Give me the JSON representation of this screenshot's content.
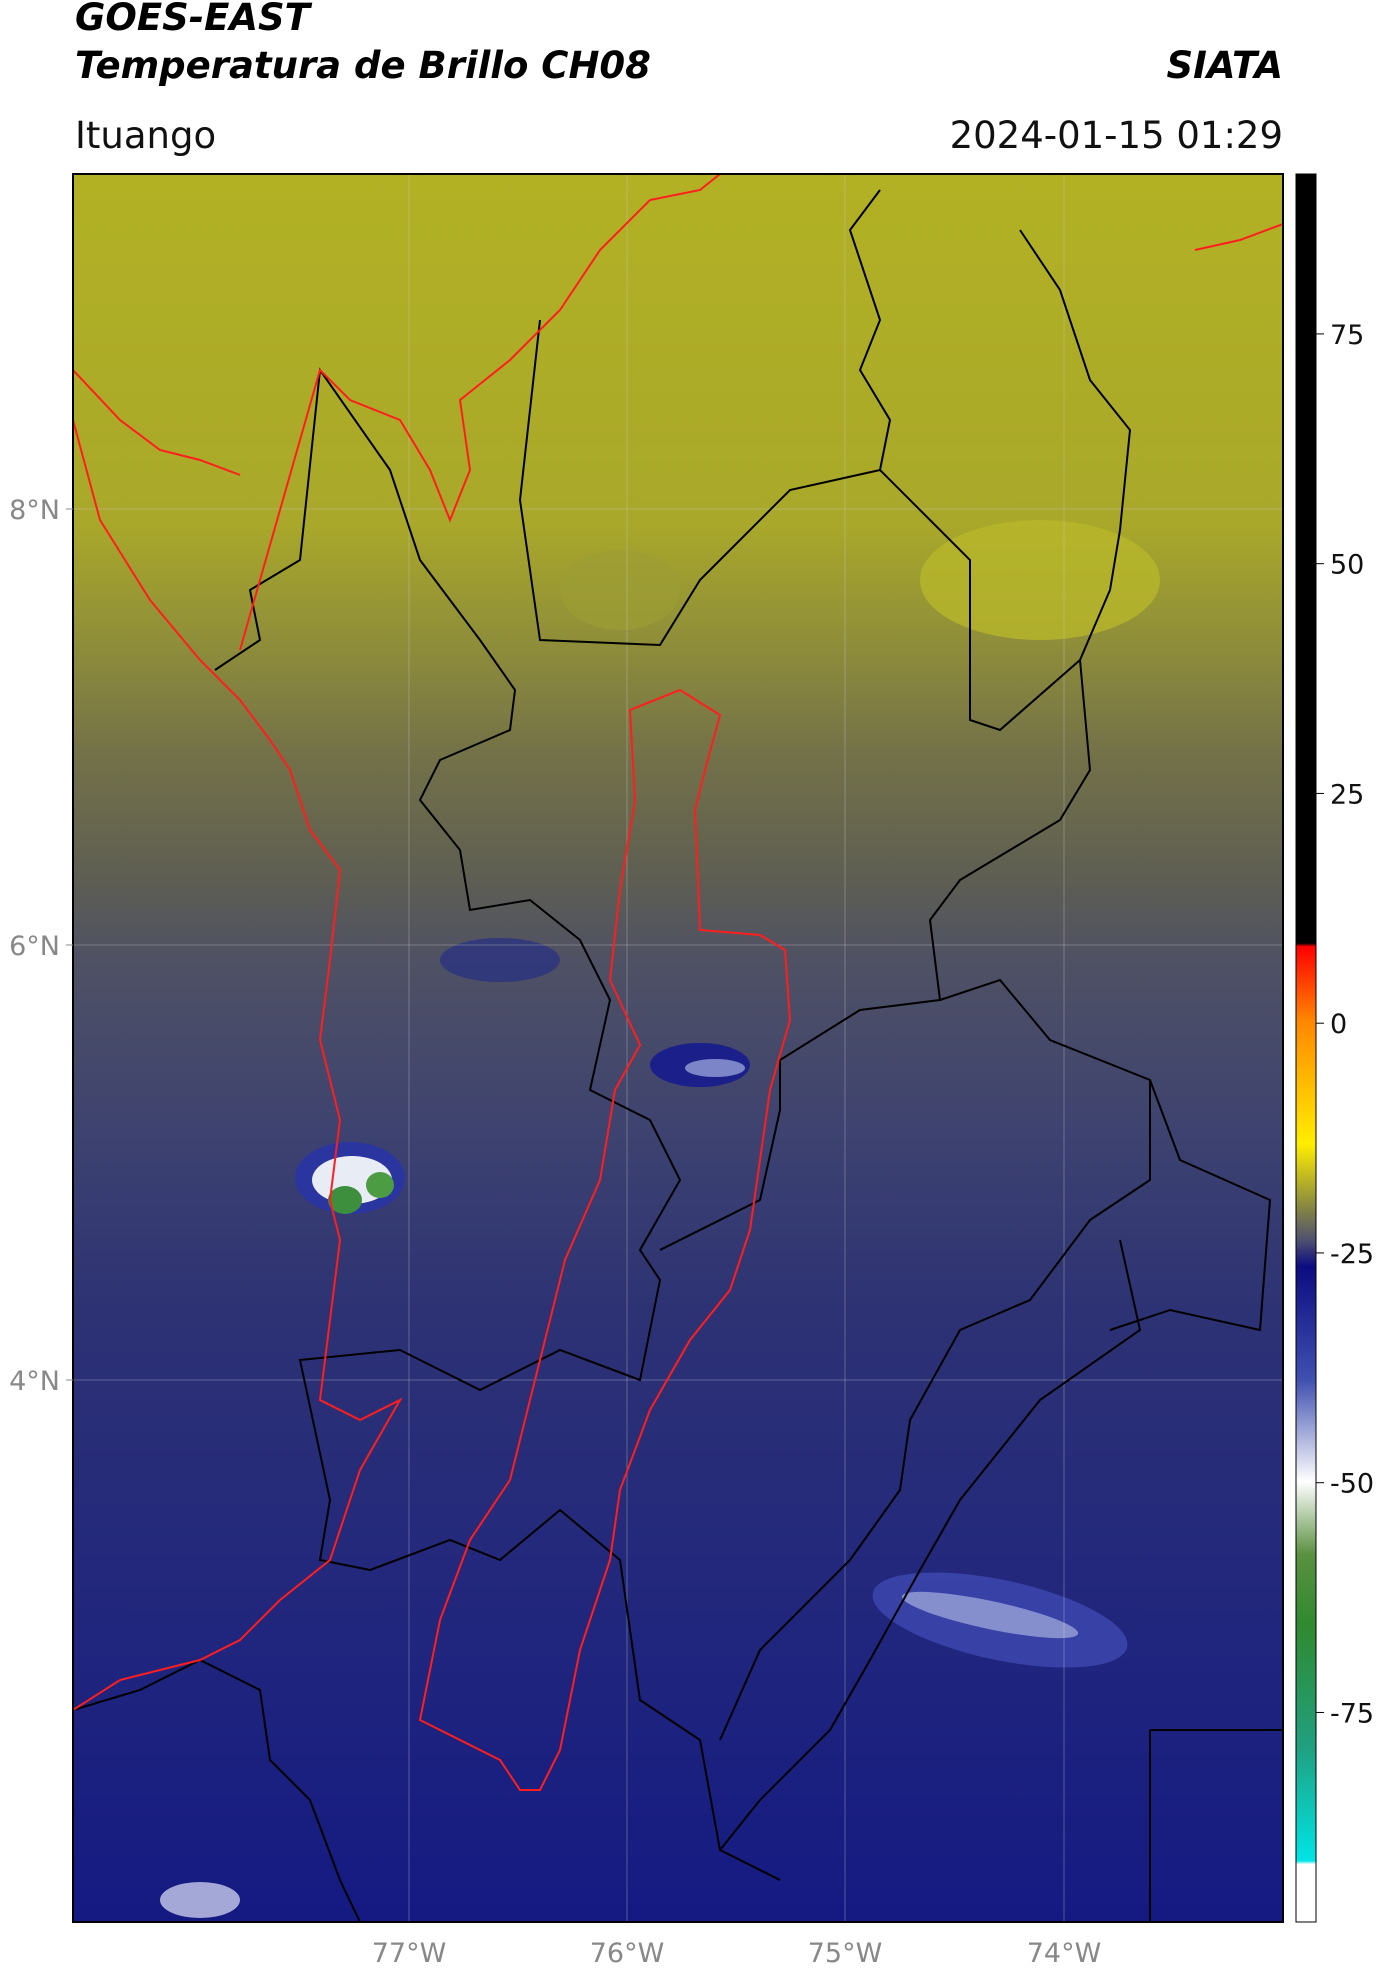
{
  "header": {
    "title": "GOES-EAST",
    "subtitle": "Temperatura de Brillo CH08",
    "source": "SIATA",
    "location": "Ituango",
    "datetime": "2024-01-15 01:29"
  },
  "map": {
    "lat_ticks": [
      "8°N",
      "6°N",
      "4°N"
    ],
    "lon_ticks": [
      "77°W",
      "76°W",
      "75°W",
      "74°W"
    ]
  },
  "colorbar": {
    "lim": [
      -97.8,
      92.4
    ],
    "ticks": [
      75,
      50,
      25,
      0,
      -25,
      -50,
      -75
    ]
  }
}
